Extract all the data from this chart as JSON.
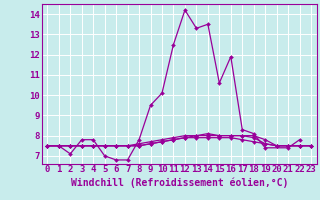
{
  "background_color": "#c8ecec",
  "grid_color": "#ffffff",
  "line_color": "#990099",
  "xlabel": "Windchill (Refroidissement éolien,°C)",
  "xlabel_fontsize": 7.0,
  "tick_fontsize": 6.5,
  "ylabel_ticks": [
    7,
    8,
    9,
    10,
    11,
    12,
    13,
    14
  ],
  "xlabel_ticks": [
    0,
    1,
    2,
    3,
    4,
    5,
    6,
    7,
    8,
    9,
    10,
    11,
    12,
    13,
    14,
    15,
    16,
    17,
    18,
    19,
    20,
    21,
    22,
    23
  ],
  "xlim": [
    -0.5,
    23.5
  ],
  "ylim": [
    6.6,
    14.5
  ],
  "series": [
    [
      7.5,
      7.5,
      7.1,
      7.8,
      7.8,
      7.0,
      6.8,
      6.8,
      7.8,
      9.5,
      10.1,
      12.5,
      14.2,
      13.3,
      13.5,
      10.6,
      11.9,
      8.3,
      8.1,
      7.4,
      7.4,
      7.8
    ],
    [
      7.5,
      7.5,
      7.5,
      7.5,
      7.5,
      7.5,
      7.5,
      7.5,
      7.5,
      7.6,
      7.7,
      7.8,
      7.9,
      8.0,
      8.0,
      8.0,
      8.0,
      8.0,
      8.0,
      7.8,
      7.5,
      7.5,
      7.5,
      7.5
    ],
    [
      7.5,
      7.5,
      7.5,
      7.5,
      7.5,
      7.5,
      7.5,
      7.5,
      7.6,
      7.7,
      7.8,
      7.9,
      8.0,
      8.0,
      8.1,
      8.0,
      8.0,
      8.0,
      7.9,
      7.6,
      7.5,
      7.5,
      7.5,
      7.5
    ],
    [
      7.5,
      7.5,
      7.5,
      7.5,
      7.5,
      7.5,
      7.5,
      7.5,
      7.5,
      7.6,
      7.7,
      7.8,
      7.9,
      7.9,
      7.9,
      7.9,
      7.9,
      7.8,
      7.7,
      7.6,
      7.5,
      7.5,
      7.5,
      7.5
    ]
  ],
  "series_x": [
    [
      0,
      1,
      2,
      3,
      4,
      5,
      6,
      7,
      8,
      9,
      10,
      11,
      12,
      13,
      14,
      15,
      16,
      17,
      18,
      19,
      21,
      22
    ],
    [
      0,
      1,
      2,
      3,
      4,
      5,
      6,
      7,
      8,
      9,
      10,
      11,
      12,
      13,
      14,
      15,
      16,
      17,
      18,
      19,
      20,
      21,
      22,
      23
    ],
    [
      0,
      1,
      2,
      3,
      4,
      5,
      6,
      7,
      8,
      9,
      10,
      11,
      12,
      13,
      14,
      15,
      16,
      17,
      18,
      19,
      20,
      21,
      22,
      23
    ],
    [
      0,
      1,
      2,
      3,
      4,
      5,
      6,
      7,
      8,
      9,
      10,
      11,
      12,
      13,
      14,
      15,
      16,
      17,
      18,
      19,
      20,
      21,
      22,
      23
    ]
  ]
}
